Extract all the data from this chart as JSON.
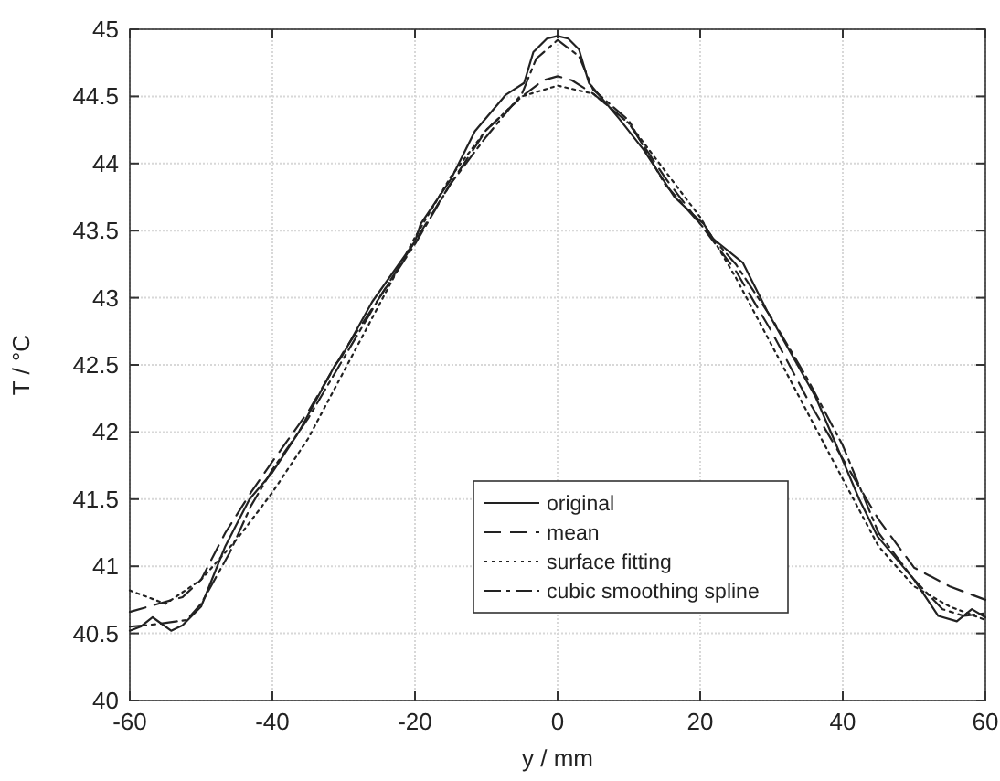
{
  "chart_data": {
    "type": "line",
    "xlabel": "y / mm",
    "ylabel": "T / °C",
    "xlim": [
      -60,
      60
    ],
    "xticks": [
      -60,
      -40,
      -20,
      0,
      20,
      40,
      60
    ],
    "ylim": [
      40,
      45
    ],
    "yticks": [
      40,
      40.5,
      41,
      41.5,
      42,
      42.5,
      43,
      43.5,
      44,
      44.5,
      45
    ],
    "grid": true,
    "legend": "bottom",
    "series": [
      {
        "name": "original",
        "color": "#222222",
        "line_style": "solid",
        "x": [
          -60,
          -58.5,
          -56.8,
          -54.2,
          -52.6,
          -50,
          -46.6,
          -43.2,
          -40,
          -36.3,
          -31.2,
          -30.3,
          -26,
          -20,
          -19.2,
          -15,
          -11.6,
          -7.3,
          -4.7,
          -3.4,
          -1.5,
          0,
          1.5,
          3,
          4.4,
          8.7,
          12.1,
          16.4,
          19,
          20.5,
          21.8,
          26,
          29.4,
          32.8,
          36.2,
          38.8,
          42.3,
          44.9,
          50,
          53.4,
          56,
          58.1,
          60
        ],
        "values": [
          40.52,
          40.55,
          40.62,
          40.52,
          40.56,
          40.7,
          41.15,
          41.5,
          41.7,
          42.0,
          42.5,
          42.56,
          42.97,
          43.42,
          43.55,
          43.88,
          44.24,
          44.51,
          44.6,
          44.83,
          44.93,
          44.95,
          44.93,
          44.85,
          44.6,
          44.33,
          44.1,
          43.75,
          43.62,
          43.55,
          43.44,
          43.26,
          42.9,
          42.58,
          42.26,
          41.94,
          41.5,
          41.22,
          40.9,
          40.63,
          40.59,
          40.68,
          40.62
        ]
      },
      {
        "name": "mean",
        "color": "#222222",
        "line_style": "dashed",
        "x": [
          -60,
          -56,
          -52.6,
          -50,
          -46.6,
          -43,
          -40,
          -35,
          -30,
          -25,
          -20,
          -15,
          -10,
          -5,
          -2,
          0,
          2,
          5,
          10,
          15,
          20,
          25,
          30,
          35,
          40,
          45,
          50,
          55,
          60
        ],
        "values": [
          40.66,
          40.72,
          40.77,
          40.9,
          41.25,
          41.55,
          41.78,
          42.15,
          42.6,
          43.0,
          43.42,
          43.85,
          44.25,
          44.5,
          44.62,
          44.65,
          44.62,
          44.52,
          44.3,
          43.9,
          43.55,
          43.2,
          42.75,
          42.25,
          41.8,
          41.35,
          40.99,
          40.85,
          40.75
        ]
      },
      {
        "name": "surface fitting",
        "color": "#222222",
        "line_style": "dotted",
        "x": [
          -60,
          -55,
          -50,
          -45,
          -40,
          -35,
          -30,
          -25,
          -20,
          -15,
          -10,
          -5,
          0,
          5,
          10,
          15,
          20,
          25,
          30,
          35,
          40,
          45,
          50,
          55,
          60
        ],
        "values": [
          40.82,
          40.72,
          40.9,
          41.2,
          41.55,
          41.95,
          42.45,
          42.95,
          43.45,
          43.9,
          44.25,
          44.5,
          44.58,
          44.52,
          44.3,
          43.95,
          43.6,
          43.15,
          42.65,
          42.15,
          41.65,
          41.15,
          40.85,
          40.7,
          40.6
        ]
      },
      {
        "name": "cubic smoothing spline",
        "color": "#222222",
        "line_style": "dashdot",
        "x": [
          -60,
          -56,
          -52,
          -50,
          -46,
          -43,
          -40,
          -35,
          -30,
          -25,
          -20,
          -15,
          -10,
          -5,
          -3,
          0,
          3,
          5,
          10,
          15,
          20,
          25,
          30,
          35,
          40,
          45,
          50,
          54,
          57,
          60
        ],
        "values": [
          40.55,
          40.57,
          40.6,
          40.72,
          41.1,
          41.45,
          41.72,
          42.1,
          42.55,
          43.0,
          43.4,
          43.85,
          44.2,
          44.52,
          44.78,
          44.92,
          44.8,
          44.55,
          44.32,
          43.85,
          43.55,
          43.25,
          42.85,
          42.4,
          41.9,
          41.25,
          40.9,
          40.68,
          40.63,
          40.65
        ]
      }
    ]
  }
}
